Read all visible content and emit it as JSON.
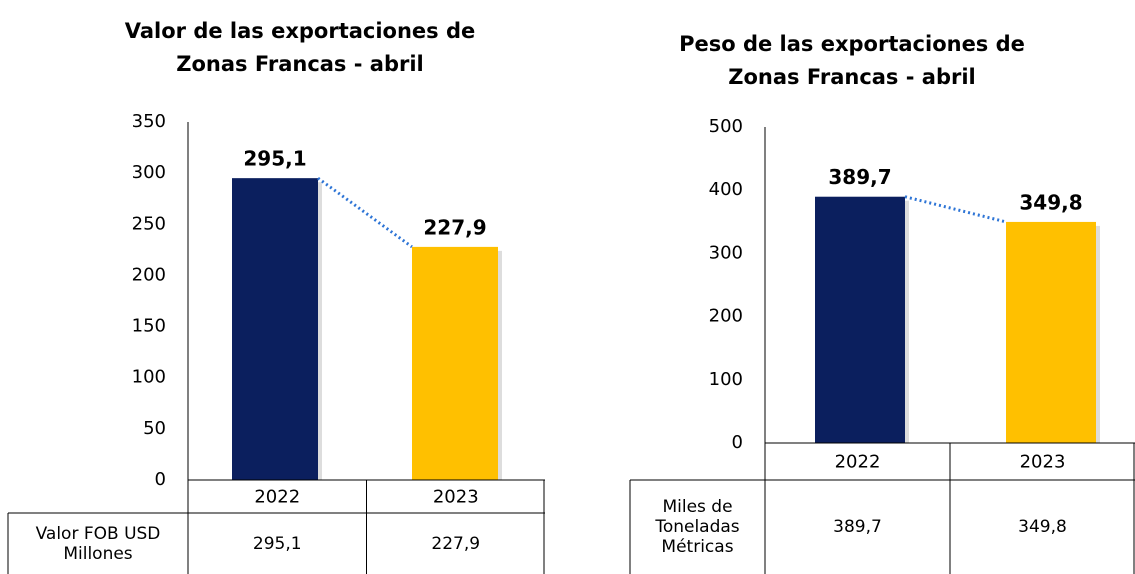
{
  "chart_data": [
    {
      "type": "bar",
      "title": "Valor de las exportaciones de Zonas Francas - abril",
      "categories": [
        "2022",
        "2023"
      ],
      "values": [
        295.1,
        227.9
      ],
      "value_labels": [
        "295,1",
        "227,9"
      ],
      "colors": [
        "#0b1f5e",
        "#ffc000"
      ],
      "ylim": [
        0,
        350
      ],
      "yticks": [
        0,
        50,
        100,
        150,
        200,
        250,
        300,
        350
      ],
      "table_label": "Valor FOB USD Millones"
    },
    {
      "type": "bar",
      "title": "Peso de las exportaciones de Zonas Francas - abril",
      "categories": [
        "2022",
        "2023"
      ],
      "values": [
        389.7,
        349.8
      ],
      "value_labels": [
        "389,7",
        "349,8"
      ],
      "colors": [
        "#0b1f5e",
        "#ffc000"
      ],
      "ylim": [
        0,
        500
      ],
      "yticks": [
        0,
        100,
        200,
        300,
        400,
        500
      ],
      "table_label": "Miles de Toneladas Métricas"
    }
  ]
}
